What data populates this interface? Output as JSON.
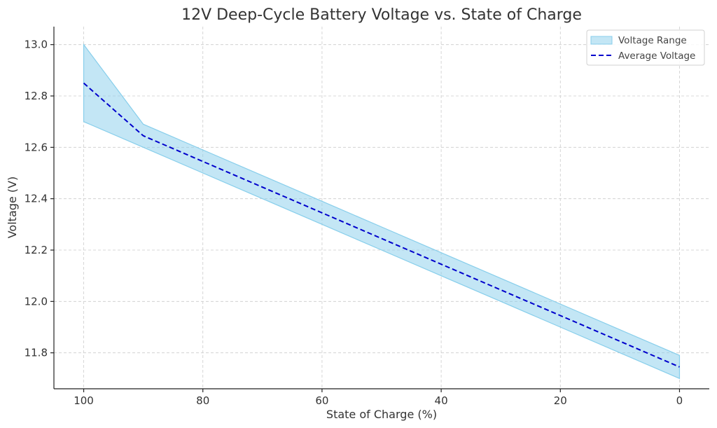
{
  "chart_data": {
    "type": "area",
    "title": "12V Deep-Cycle Battery Voltage vs. State of Charge",
    "xlabel": "State of Charge (%)",
    "ylabel": "Voltage (V)",
    "x": [
      100,
      90,
      80,
      70,
      60,
      50,
      40,
      30,
      20,
      10,
      0
    ],
    "xlim": [
      105,
      -5
    ],
    "ylim": [
      11.66,
      13.07
    ],
    "x_ticks": [
      "100",
      "80",
      "60",
      "40",
      "20",
      "0"
    ],
    "y_ticks": [
      "11.8",
      "12.0",
      "12.2",
      "12.4",
      "12.6",
      "12.8",
      "13.0"
    ],
    "grid": true,
    "legend_position": "top-right",
    "series": [
      {
        "name": "Voltage Range",
        "kind": "band",
        "color": "#87CEEB",
        "lower": [
          12.7,
          12.6,
          12.5,
          12.4,
          12.3,
          12.2,
          12.1,
          12.0,
          11.9,
          11.8,
          11.7
        ],
        "upper": [
          13.0,
          12.69,
          12.59,
          12.49,
          12.39,
          12.29,
          12.19,
          12.09,
          11.99,
          11.89,
          11.79
        ]
      },
      {
        "name": "Average Voltage",
        "kind": "line",
        "style": "dashed",
        "color": "#0000CC",
        "values": [
          12.85,
          12.645,
          12.545,
          12.445,
          12.345,
          12.245,
          12.145,
          12.045,
          11.945,
          11.845,
          11.745
        ]
      }
    ]
  }
}
